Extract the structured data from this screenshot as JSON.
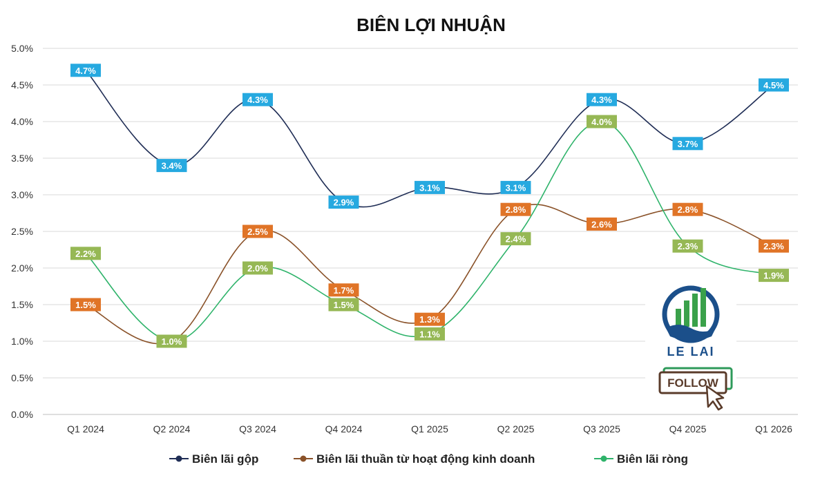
{
  "chart_data": {
    "type": "line",
    "title": "BIÊN LỢI NHUẬN",
    "categories": [
      "Q1 2024",
      "Q2 2024",
      "Q3 2024",
      "Q4 2024",
      "Q1 2025",
      "Q2 2025",
      "Q3 2025",
      "Q4 2025",
      "Q1 2026"
    ],
    "ylim": [
      0,
      5
    ],
    "yticks": [
      0,
      0.5,
      1,
      1.5,
      2,
      2.5,
      3,
      3.5,
      4,
      4.5,
      5
    ],
    "ytick_labels": [
      "0.0%",
      "0.5%",
      "1.0%",
      "1.5%",
      "2.0%",
      "2.5%",
      "3.0%",
      "3.5%",
      "4.0%",
      "4.5%",
      "5.0%"
    ],
    "grid": true,
    "legend_position": "bottom",
    "series": [
      {
        "name": "Biên lãi gộp",
        "line_color": "#1f2d55",
        "label_color": "#26a9e0",
        "values": [
          4.7,
          3.4,
          4.3,
          2.9,
          3.1,
          3.1,
          4.3,
          3.7,
          4.5
        ],
        "labels": [
          "4.7%",
          "3.4%",
          "4.3%",
          "2.9%",
          "3.1%",
          "3.1%",
          "4.3%",
          "3.7%",
          "4.5%"
        ]
      },
      {
        "name": "Biên lãi thuần từ hoạt động kinh doanh",
        "line_color": "#8a5229",
        "label_color": "#e07427",
        "values": [
          1.5,
          1.0,
          2.5,
          1.7,
          1.3,
          2.8,
          2.6,
          2.8,
          2.3
        ],
        "labels": [
          "1.5%",
          "",
          "2.5%",
          "1.7%",
          "1.3%",
          "2.8%",
          "2.6%",
          "2.8%",
          "2.3%"
        ]
      },
      {
        "name": "Biên lãi ròng",
        "line_color": "#2eb36a",
        "label_color": "#96b855",
        "values": [
          2.2,
          1.0,
          2.0,
          1.5,
          1.1,
          2.4,
          4.0,
          2.3,
          1.9
        ],
        "labels": [
          "2.2%",
          "1.0%",
          "2.0%",
          "1.5%",
          "1.1%",
          "2.4%",
          "4.0%",
          "2.3%",
          "1.9%"
        ]
      }
    ]
  },
  "branding": {
    "logo_text": "LE LAI",
    "follow_text": "FOLLOW",
    "logo_color": "#1b4f8a",
    "logo_accent": "#3aa14a",
    "follow_border": "#5a3b2a",
    "follow_accent": "#2e9a5a"
  }
}
